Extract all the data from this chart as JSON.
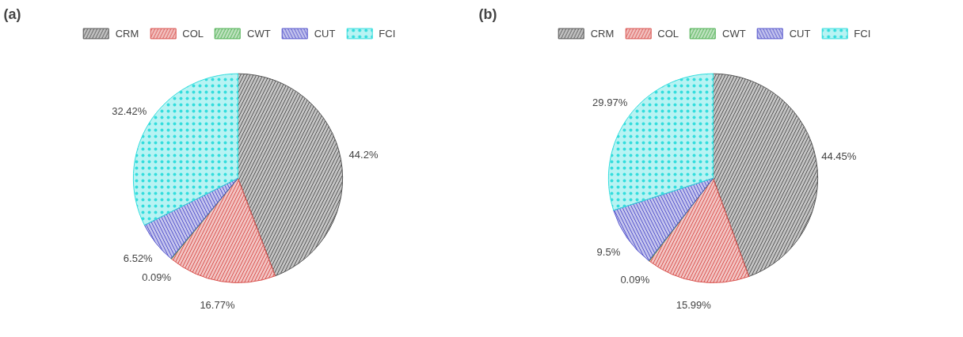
{
  "chart_data": [
    {
      "type": "pie",
      "title": "(a)",
      "categories": [
        "CRM",
        "COL",
        "CWT",
        "CUT",
        "FCI"
      ],
      "values": [
        44.2,
        16.77,
        0.09,
        6.52,
        32.42
      ],
      "colors": [
        "#555555",
        "#d9534f",
        "#4caf50",
        "#5555cc",
        "#33dddd"
      ],
      "value_labels": [
        "44.2%",
        "16.77%",
        "0.09%",
        "6.52%",
        "32.42%"
      ],
      "legend": "top"
    },
    {
      "type": "pie",
      "title": "(b)",
      "categories": [
        "CRM",
        "COL",
        "CWT",
        "CUT",
        "FCI"
      ],
      "values": [
        44.45,
        15.99,
        0.09,
        9.5,
        29.97
      ],
      "colors": [
        "#555555",
        "#d9534f",
        "#4caf50",
        "#5555cc",
        "#33dddd"
      ],
      "value_labels": [
        "44.45%",
        "15.99%",
        "0.09%",
        "9.5%",
        "29.97%"
      ],
      "legend": "top"
    }
  ]
}
